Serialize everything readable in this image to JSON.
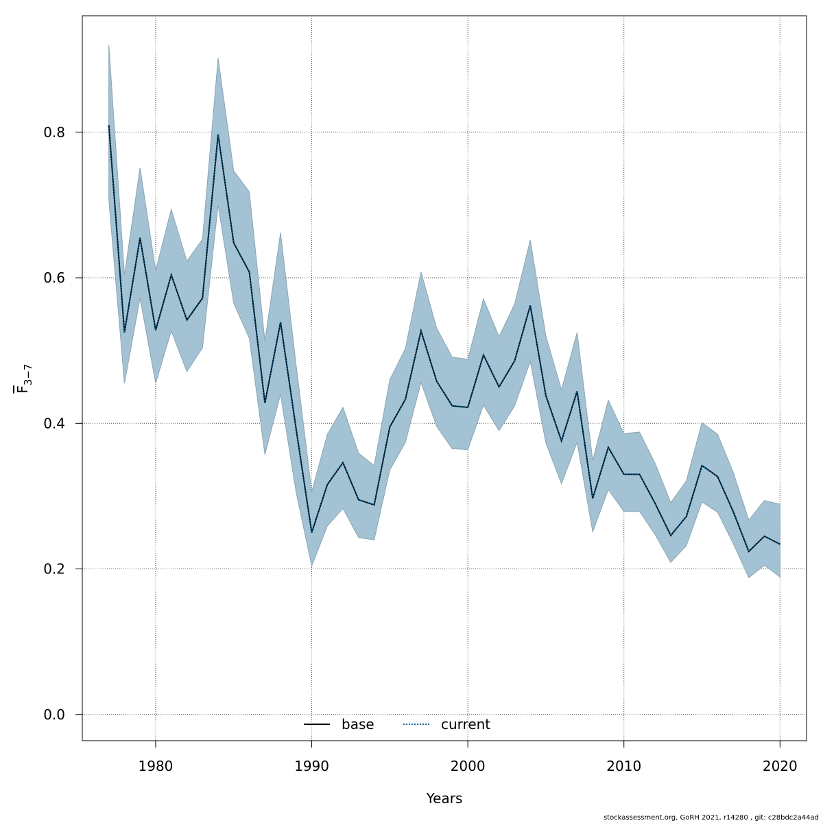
{
  "chart_data": {
    "type": "area",
    "xlabel": "Years",
    "ylabel": {
      "main": "F",
      "sub": "3−7"
    },
    "xlim": [
      1975.3,
      2021.7
    ],
    "ylim": [
      -0.036,
      0.96
    ],
    "x_ticks": [
      1980,
      1990,
      2000,
      2010,
      2020
    ],
    "y_ticks": [
      0.0,
      0.2,
      0.4,
      0.6,
      0.8
    ],
    "y_tick_labels": [
      "0.0",
      "0.2",
      "0.4",
      "0.6",
      "0.8"
    ],
    "grid": true,
    "legend": {
      "position": "bottom-center",
      "entries": [
        {
          "name": "base",
          "style": "solid",
          "color": "#000000"
        },
        {
          "name": "current",
          "style": "dotted",
          "color": "#005a8c"
        }
      ]
    },
    "band_color": "#a3c3d5",
    "x": [
      1977,
      1978,
      1979,
      1980,
      1981,
      1982,
      1983,
      1984,
      1985,
      1986,
      1987,
      1988,
      1989,
      1990,
      1991,
      1992,
      1993,
      1994,
      1995,
      1996,
      1997,
      1998,
      1999,
      2000,
      2001,
      2002,
      2003,
      2004,
      2005,
      2006,
      2007,
      2008,
      2009,
      2010,
      2011,
      2012,
      2013,
      2014,
      2015,
      2016,
      2017,
      2018,
      2019,
      2020
    ],
    "series": [
      {
        "name": "base",
        "values": [
          0.81,
          0.525,
          0.655,
          0.528,
          0.604,
          0.542,
          0.572,
          0.797,
          0.648,
          0.608,
          0.428,
          0.539,
          0.392,
          0.25,
          0.316,
          0.346,
          0.295,
          0.288,
          0.395,
          0.433,
          0.527,
          0.458,
          0.424,
          0.422,
          0.494,
          0.45,
          0.486,
          0.562,
          0.438,
          0.376,
          0.444,
          0.297,
          0.367,
          0.33,
          0.33,
          0.29,
          0.246,
          0.272,
          0.342,
          0.327,
          0.279,
          0.224,
          0.245,
          0.234
        ]
      },
      {
        "name": "current",
        "values": [
          0.81,
          0.525,
          0.655,
          0.528,
          0.604,
          0.542,
          0.572,
          0.797,
          0.648,
          0.608,
          0.428,
          0.539,
          0.392,
          0.25,
          0.316,
          0.346,
          0.295,
          0.288,
          0.395,
          0.433,
          0.527,
          0.458,
          0.424,
          0.422,
          0.494,
          0.45,
          0.486,
          0.562,
          0.438,
          0.376,
          0.444,
          0.297,
          0.367,
          0.33,
          0.33,
          0.29,
          0.246,
          0.272,
          0.342,
          0.327,
          0.279,
          0.224,
          0.245,
          0.234
        ]
      }
    ],
    "band_upper": [
      0.92,
      0.604,
      0.751,
      0.61,
      0.694,
      0.623,
      0.653,
      0.902,
      0.747,
      0.718,
      0.513,
      0.662,
      0.48,
      0.306,
      0.385,
      0.422,
      0.359,
      0.342,
      0.46,
      0.503,
      0.608,
      0.531,
      0.491,
      0.488,
      0.571,
      0.519,
      0.564,
      0.652,
      0.52,
      0.446,
      0.525,
      0.349,
      0.432,
      0.386,
      0.388,
      0.345,
      0.291,
      0.321,
      0.401,
      0.385,
      0.333,
      0.267,
      0.294,
      0.289
    ],
    "band_lower": [
      0.707,
      0.455,
      0.572,
      0.455,
      0.527,
      0.471,
      0.504,
      0.7,
      0.565,
      0.517,
      0.357,
      0.44,
      0.305,
      0.204,
      0.259,
      0.283,
      0.243,
      0.24,
      0.336,
      0.374,
      0.456,
      0.396,
      0.365,
      0.364,
      0.425,
      0.39,
      0.424,
      0.485,
      0.373,
      0.317,
      0.374,
      0.251,
      0.309,
      0.279,
      0.279,
      0.247,
      0.209,
      0.232,
      0.292,
      0.278,
      0.235,
      0.188,
      0.205,
      0.189
    ]
  },
  "footer": "stockassessment.org, GoRH  2021, r14280 , git: c28bdc2a44ad"
}
